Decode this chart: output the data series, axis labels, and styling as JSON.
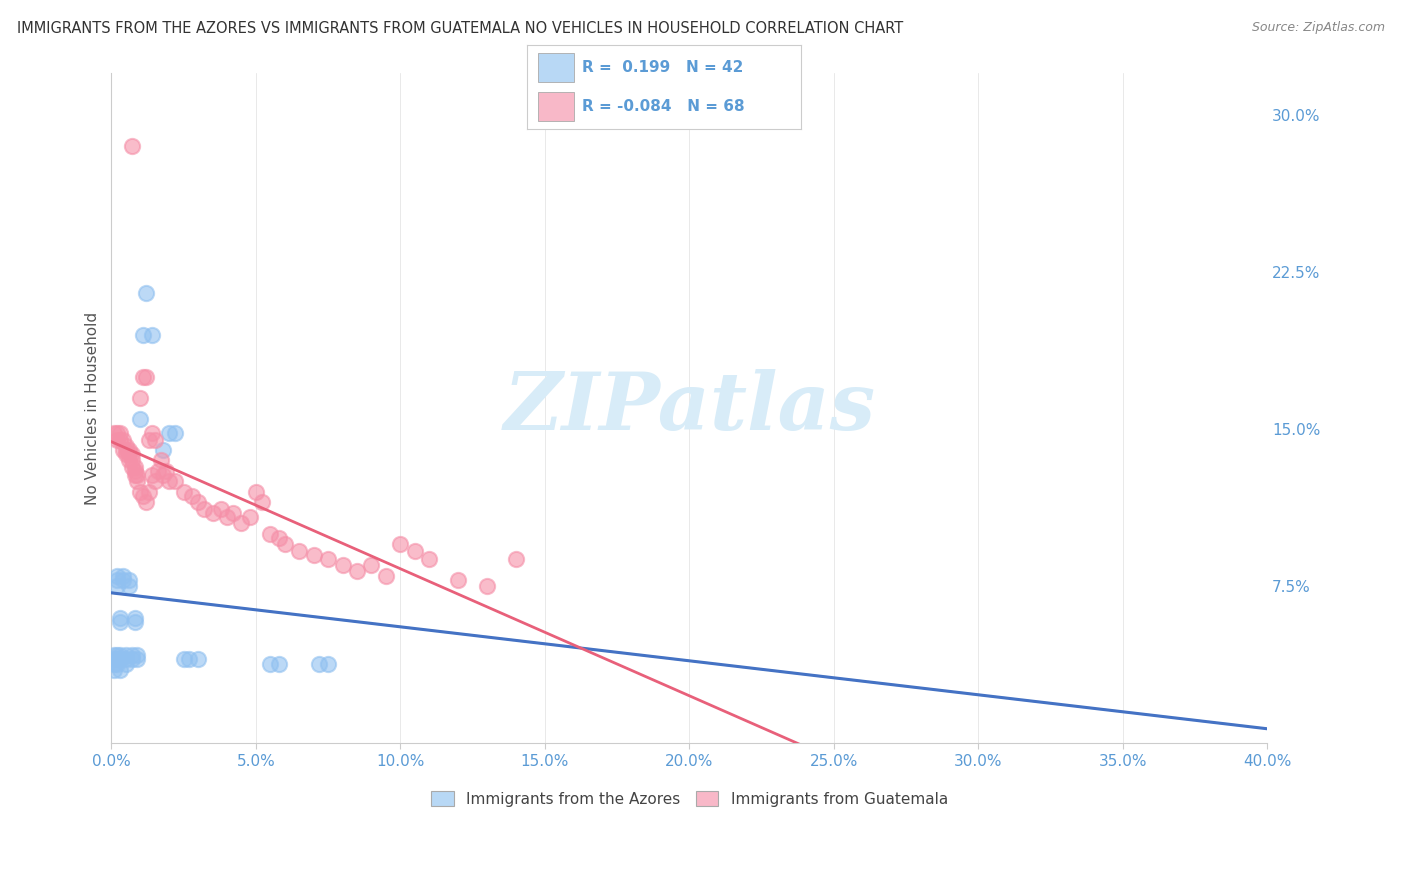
{
  "title": "IMMIGRANTS FROM THE AZORES VS IMMIGRANTS FROM GUATEMALA NO VEHICLES IN HOUSEHOLD CORRELATION CHART",
  "source": "Source: ZipAtlas.com",
  "ylabel": "No Vehicles in Household",
  "legend_azores_R": 0.199,
  "legend_azores_N": 42,
  "legend_guatemala_R": -0.084,
  "legend_guatemala_N": 68,
  "azores_color": "#90c0f0",
  "guatemala_color": "#f590a8",
  "trend_azores_color": "#4472c4",
  "trend_guatemala_color": "#e8607a",
  "legend_azores_fill": "#b8d8f5",
  "legend_guatemala_fill": "#f8b8c8",
  "azores_scatter": [
    [
      0.001,
      0.04
    ],
    [
      0.001,
      0.038
    ],
    [
      0.001,
      0.042
    ],
    [
      0.001,
      0.035
    ],
    [
      0.002,
      0.04
    ],
    [
      0.002,
      0.042
    ],
    [
      0.002,
      0.038
    ],
    [
      0.002,
      0.08
    ],
    [
      0.002,
      0.078
    ],
    [
      0.002,
      0.075
    ],
    [
      0.003,
      0.04
    ],
    [
      0.003,
      0.042
    ],
    [
      0.003,
      0.035
    ],
    [
      0.003,
      0.06
    ],
    [
      0.003,
      0.058
    ],
    [
      0.004,
      0.08
    ],
    [
      0.004,
      0.078
    ],
    [
      0.005,
      0.04
    ],
    [
      0.005,
      0.038
    ],
    [
      0.005,
      0.042
    ],
    [
      0.006,
      0.075
    ],
    [
      0.006,
      0.078
    ],
    [
      0.007,
      0.04
    ],
    [
      0.007,
      0.042
    ],
    [
      0.008,
      0.06
    ],
    [
      0.008,
      0.058
    ],
    [
      0.009,
      0.04
    ],
    [
      0.009,
      0.042
    ],
    [
      0.01,
      0.155
    ],
    [
      0.011,
      0.195
    ],
    [
      0.012,
      0.215
    ],
    [
      0.014,
      0.195
    ],
    [
      0.018,
      0.14
    ],
    [
      0.02,
      0.148
    ],
    [
      0.022,
      0.148
    ],
    [
      0.025,
      0.04
    ],
    [
      0.027,
      0.04
    ],
    [
      0.03,
      0.04
    ],
    [
      0.055,
      0.038
    ],
    [
      0.058,
      0.038
    ],
    [
      0.072,
      0.038
    ],
    [
      0.075,
      0.038
    ]
  ],
  "guatemala_scatter": [
    [
      0.001,
      0.148
    ],
    [
      0.002,
      0.148
    ],
    [
      0.002,
      0.145
    ],
    [
      0.003,
      0.145
    ],
    [
      0.003,
      0.148
    ],
    [
      0.004,
      0.14
    ],
    [
      0.004,
      0.145
    ],
    [
      0.005,
      0.138
    ],
    [
      0.005,
      0.14
    ],
    [
      0.005,
      0.142
    ],
    [
      0.006,
      0.135
    ],
    [
      0.006,
      0.138
    ],
    [
      0.006,
      0.14
    ],
    [
      0.007,
      0.132
    ],
    [
      0.007,
      0.135
    ],
    [
      0.007,
      0.138
    ],
    [
      0.008,
      0.128
    ],
    [
      0.008,
      0.13
    ],
    [
      0.008,
      0.132
    ],
    [
      0.009,
      0.125
    ],
    [
      0.009,
      0.128
    ],
    [
      0.01,
      0.12
    ],
    [
      0.01,
      0.165
    ],
    [
      0.011,
      0.118
    ],
    [
      0.011,
      0.175
    ],
    [
      0.012,
      0.115
    ],
    [
      0.012,
      0.175
    ],
    [
      0.013,
      0.12
    ],
    [
      0.013,
      0.145
    ],
    [
      0.014,
      0.128
    ],
    [
      0.014,
      0.148
    ],
    [
      0.015,
      0.125
    ],
    [
      0.015,
      0.145
    ],
    [
      0.016,
      0.13
    ],
    [
      0.017,
      0.135
    ],
    [
      0.018,
      0.128
    ],
    [
      0.019,
      0.13
    ],
    [
      0.02,
      0.125
    ],
    [
      0.022,
      0.125
    ],
    [
      0.025,
      0.12
    ],
    [
      0.028,
      0.118
    ],
    [
      0.03,
      0.115
    ],
    [
      0.032,
      0.112
    ],
    [
      0.035,
      0.11
    ],
    [
      0.038,
      0.112
    ],
    [
      0.04,
      0.108
    ],
    [
      0.042,
      0.11
    ],
    [
      0.045,
      0.105
    ],
    [
      0.048,
      0.108
    ],
    [
      0.05,
      0.12
    ],
    [
      0.052,
      0.115
    ],
    [
      0.055,
      0.1
    ],
    [
      0.058,
      0.098
    ],
    [
      0.06,
      0.095
    ],
    [
      0.065,
      0.092
    ],
    [
      0.07,
      0.09
    ],
    [
      0.075,
      0.088
    ],
    [
      0.08,
      0.085
    ],
    [
      0.085,
      0.082
    ],
    [
      0.09,
      0.085
    ],
    [
      0.095,
      0.08
    ],
    [
      0.1,
      0.095
    ],
    [
      0.105,
      0.092
    ],
    [
      0.11,
      0.088
    ],
    [
      0.12,
      0.078
    ],
    [
      0.13,
      0.075
    ],
    [
      0.14,
      0.088
    ],
    [
      0.007,
      0.285
    ]
  ],
  "xlim": [
    0.0,
    0.4
  ],
  "ylim": [
    0.0,
    0.32
  ],
  "yticks": [
    0.075,
    0.15,
    0.225,
    0.3
  ],
  "ytick_labels": [
    "7.5%",
    "15.0%",
    "22.5%",
    "30.0%"
  ],
  "xticks": [
    0.0,
    0.05,
    0.1,
    0.15,
    0.2,
    0.25,
    0.3,
    0.35,
    0.4
  ],
  "xtick_labels": [
    "0.0%",
    "5.0%",
    "10.0%",
    "15.0%",
    "20.0%",
    "25.0%",
    "30.0%",
    "35.0%",
    "40.0%"
  ],
  "tick_color": "#5b9bd5",
  "title_color": "#333333",
  "watermark": "ZIPatlas",
  "watermark_color": "#d8ecf8",
  "background_color": "#ffffff",
  "grid_color": "#e0e0e0"
}
